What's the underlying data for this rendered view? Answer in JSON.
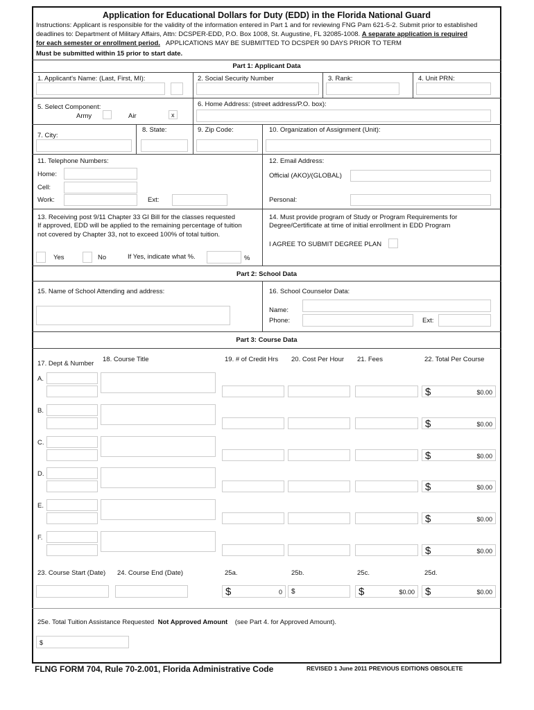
{
  "title": "Application for Educational Dollars for Duty (EDD) in the Florida National Guard",
  "instructions": {
    "line1": "Instructions: Applicant is responsible for the validity of the information entered in Part 1 and for reviewing FNG Pam 621-5-2.  Submit prior to established",
    "line2a": "deadlines to: Department of Military Affairs, Attn: DCSPER-EDD, P.O. Box 1008, St. Augustine, FL 32085-1008.  ",
    "line2b": "A separate application is required",
    "line3a": "for each semester or enrollment period.",
    "line3b": "APPLICATIONS MAY BE SUBMITTED TO DCSPER 90 DAYS PRIOR TO TERM",
    "line4": "Must be submitted within 15 prior to start date."
  },
  "part1": {
    "heading": "Part 1: Applicant Data",
    "name_label": "1. Applicant's Name: (Last, First, MI):",
    "ssn_label": "2. Social Security Number",
    "rank_label": "3. Rank:",
    "unit_label": "4. Unit PRN:",
    "component_label": "5. Select Component:",
    "army_label": "Army",
    "air_label": "Air",
    "air_checked": "x",
    "address_label": "6. Home Address: (street address/P.O. box):",
    "city_label": "7. City:",
    "state_label": "8. State:",
    "zip_label": "9. Zip Code:",
    "org_label": "10. Organization of Assignment (Unit):",
    "phone_label": "11. Telephone Numbers:",
    "home_label": "Home:",
    "cell_label": "Cell:",
    "work_label": "Work:",
    "ext_label": "Ext:",
    "email_label": "12. Email Address:",
    "official_label": "Official (AKO)/(GLOBAL)",
    "personal_label": "Personal:",
    "gi_line1": "13. Receiving post 9/11 Chapter 33 GI Bill for the classes requested",
    "gi_line2": "If approved, EDD will be applied to the remaining percentage of tuition",
    "gi_line3": "not covered by Chapter 33, not to exceed 100% of total tuition.",
    "yes_label": "Yes",
    "no_label": "No",
    "percent_prompt": "If Yes, indicate what %.",
    "percent_sign": "%",
    "program_line1": "14. Must provide program of Study or Program Requirements for",
    "program_line2": "Degree/Certificate at time of initial enrollment in EDD Program",
    "agree_label": "I AGREE TO SUBMIT DEGREE PLAN"
  },
  "part2": {
    "heading": "Part 2: School Data",
    "school_label": "15. Name of School Attending and address:",
    "counselor_label": "16. School Counselor Data:",
    "name_label": "Name:",
    "phone_label": "Phone:",
    "ext_label": "Ext:"
  },
  "part3": {
    "heading": "Part 3: Course Data",
    "col_dept": "17. Dept & Number",
    "col_title": "18. Course Title",
    "col_credit": "19. # of Credit Hrs",
    "col_cost": "20. Cost Per Hour",
    "col_fees": "21. Fees",
    "col_total": "22. Total Per Course",
    "currency": "$",
    "rows": [
      {
        "letter": "A.",
        "total": "$0.00"
      },
      {
        "letter": "B.",
        "total": "$0.00"
      },
      {
        "letter": "C.",
        "total": "$0.00"
      },
      {
        "letter": "D.",
        "total": "$0.00"
      },
      {
        "letter": "E.",
        "total": "$0.00"
      },
      {
        "letter": "F.",
        "total": "$0.00"
      }
    ],
    "start_label": "23. Course Start (Date)",
    "end_label": "24. Course End (Date)",
    "t25a_label": "25a.",
    "t25b_label": "25b.",
    "t25c_label": "25c.",
    "t25d_label": "25d.",
    "t25a_value": "0",
    "t25c_value": "$0.00",
    "t25d_value": "$0.00",
    "total_label": "25e. Total Tuition Assistance Requested",
    "not_approved": "Not Approved Amount",
    "see_part4": "(see Part 4. for Approved Amount).",
    "total_prefix": "$"
  },
  "footer": {
    "form_id": "FLNG FORM 704, Rule 70-2.001, Florida Administrative Code",
    "revised": "REVISED 1 June 2011   PREVIOUS EDITIONS OBSOLETE"
  }
}
